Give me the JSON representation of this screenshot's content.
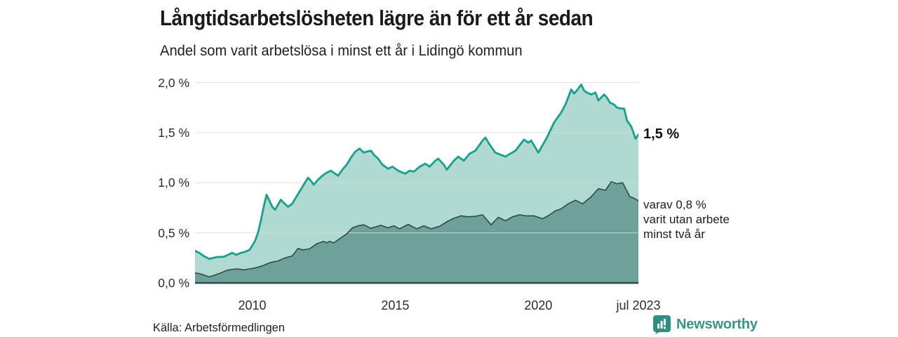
{
  "header": {
    "title": "Långtidsarbetslösheten lägre än för ett år sedan",
    "subtitle": "Andel som varit arbetslösa i minst ett år i Lidingö kommun"
  },
  "chart_data": {
    "type": "area",
    "title": "Långtidsarbetslösheten lägre än för ett år sedan",
    "subtitle": "Andel som varit arbetslösa i minst ett år i Lidingö kommun",
    "xlabel": "",
    "ylabel": "",
    "xlim": [
      2008.0,
      2023.5
    ],
    "ylim": [
      0,
      2.05
    ],
    "grid": true,
    "unit": "%",
    "colors": {
      "line_1yr": "#17a08c",
      "fill_1yr": "#b0d9d1",
      "line_2yr": "#2c4b47",
      "fill_2yr": "#6fa19b",
      "gridline": "#dcdcdc"
    },
    "yticks": [
      {
        "value": 0.0,
        "label": "0,0 %"
      },
      {
        "value": 0.5,
        "label": "0,5 %"
      },
      {
        "value": 1.0,
        "label": "1,0 %"
      },
      {
        "value": 1.5,
        "label": "1,5 %"
      },
      {
        "value": 2.0,
        "label": "2,0 %"
      }
    ],
    "xticks": [
      {
        "year": 2010,
        "label": "2010"
      },
      {
        "year": 2015,
        "label": "2015"
      },
      {
        "year": 2020,
        "label": "2020"
      },
      {
        "year": 2023.5,
        "label": "jul 2023"
      }
    ],
    "series": [
      {
        "name": "Andel arbetslösa minst ett år",
        "end_label": "1,5 %",
        "points": [
          [
            2008.0,
            0.32
          ],
          [
            2008.15,
            0.3
          ],
          [
            2008.3,
            0.27
          ],
          [
            2008.5,
            0.24
          ],
          [
            2008.65,
            0.25
          ],
          [
            2008.8,
            0.26
          ],
          [
            2009.0,
            0.26
          ],
          [
            2009.15,
            0.28
          ],
          [
            2009.3,
            0.3
          ],
          [
            2009.45,
            0.28
          ],
          [
            2009.6,
            0.3
          ],
          [
            2009.75,
            0.31
          ],
          [
            2009.9,
            0.33
          ],
          [
            2010.0,
            0.37
          ],
          [
            2010.1,
            0.42
          ],
          [
            2010.2,
            0.5
          ],
          [
            2010.3,
            0.62
          ],
          [
            2010.4,
            0.76
          ],
          [
            2010.5,
            0.88
          ],
          [
            2010.6,
            0.82
          ],
          [
            2010.7,
            0.76
          ],
          [
            2010.8,
            0.73
          ],
          [
            2010.9,
            0.78
          ],
          [
            2011.0,
            0.83
          ],
          [
            2011.1,
            0.8
          ],
          [
            2011.25,
            0.76
          ],
          [
            2011.4,
            0.79
          ],
          [
            2011.5,
            0.84
          ],
          [
            2011.65,
            0.91
          ],
          [
            2011.8,
            0.98
          ],
          [
            2011.95,
            1.05
          ],
          [
            2012.05,
            1.02
          ],
          [
            2012.15,
            0.98
          ],
          [
            2012.3,
            1.03
          ],
          [
            2012.45,
            1.07
          ],
          [
            2012.6,
            1.1
          ],
          [
            2012.75,
            1.12
          ],
          [
            2012.9,
            1.09
          ],
          [
            2013.0,
            1.07
          ],
          [
            2013.15,
            1.13
          ],
          [
            2013.3,
            1.18
          ],
          [
            2013.45,
            1.25
          ],
          [
            2013.6,
            1.31
          ],
          [
            2013.75,
            1.34
          ],
          [
            2013.9,
            1.3
          ],
          [
            2014.0,
            1.31
          ],
          [
            2014.15,
            1.32
          ],
          [
            2014.25,
            1.28
          ],
          [
            2014.4,
            1.24
          ],
          [
            2014.55,
            1.18
          ],
          [
            2014.75,
            1.14
          ],
          [
            2014.9,
            1.16
          ],
          [
            2015.1,
            1.12
          ],
          [
            2015.35,
            1.09
          ],
          [
            2015.5,
            1.12
          ],
          [
            2015.65,
            1.11
          ],
          [
            2015.85,
            1.16
          ],
          [
            2016.05,
            1.19
          ],
          [
            2016.2,
            1.16
          ],
          [
            2016.4,
            1.22
          ],
          [
            2016.5,
            1.24
          ],
          [
            2016.7,
            1.18
          ],
          [
            2016.8,
            1.13
          ],
          [
            2017.05,
            1.22
          ],
          [
            2017.2,
            1.26
          ],
          [
            2017.4,
            1.22
          ],
          [
            2017.6,
            1.29
          ],
          [
            2017.8,
            1.32
          ],
          [
            2018.05,
            1.42
          ],
          [
            2018.15,
            1.45
          ],
          [
            2018.3,
            1.38
          ],
          [
            2018.5,
            1.3
          ],
          [
            2018.85,
            1.26
          ],
          [
            2019.2,
            1.32
          ],
          [
            2019.5,
            1.43
          ],
          [
            2019.65,
            1.4
          ],
          [
            2019.75,
            1.42
          ],
          [
            2019.9,
            1.35
          ],
          [
            2020.0,
            1.3
          ],
          [
            2020.3,
            1.45
          ],
          [
            2020.55,
            1.6
          ],
          [
            2020.8,
            1.7
          ],
          [
            2020.95,
            1.78
          ],
          [
            2021.15,
            1.93
          ],
          [
            2021.25,
            1.89
          ],
          [
            2021.35,
            1.92
          ],
          [
            2021.5,
            1.98
          ],
          [
            2021.6,
            1.92
          ],
          [
            2021.7,
            1.9
          ],
          [
            2021.85,
            1.88
          ],
          [
            2022.0,
            1.9
          ],
          [
            2022.1,
            1.82
          ],
          [
            2022.3,
            1.88
          ],
          [
            2022.4,
            1.85
          ],
          [
            2022.5,
            1.8
          ],
          [
            2022.65,
            1.78
          ],
          [
            2022.75,
            1.75
          ],
          [
            2022.9,
            1.74
          ],
          [
            2023.0,
            1.74
          ],
          [
            2023.1,
            1.62
          ],
          [
            2023.25,
            1.56
          ],
          [
            2023.4,
            1.44
          ],
          [
            2023.5,
            1.48
          ]
        ]
      },
      {
        "name": "varav utan arbete minst två år",
        "end_label": "varav 0,8 % varit utan arbete minst två år",
        "points": [
          [
            2008.0,
            0.1
          ],
          [
            2008.2,
            0.09
          ],
          [
            2008.35,
            0.075
          ],
          [
            2008.5,
            0.06
          ],
          [
            2008.7,
            0.08
          ],
          [
            2008.9,
            0.1
          ],
          [
            2009.1,
            0.125
          ],
          [
            2009.3,
            0.135
          ],
          [
            2009.5,
            0.14
          ],
          [
            2009.7,
            0.13
          ],
          [
            2009.9,
            0.14
          ],
          [
            2010.1,
            0.15
          ],
          [
            2010.35,
            0.17
          ],
          [
            2010.65,
            0.205
          ],
          [
            2010.9,
            0.22
          ],
          [
            2011.15,
            0.25
          ],
          [
            2011.4,
            0.27
          ],
          [
            2011.6,
            0.345
          ],
          [
            2011.75,
            0.33
          ],
          [
            2012.0,
            0.34
          ],
          [
            2012.25,
            0.39
          ],
          [
            2012.5,
            0.415
          ],
          [
            2012.6,
            0.4
          ],
          [
            2012.7,
            0.415
          ],
          [
            2012.85,
            0.4
          ],
          [
            2013.1,
            0.45
          ],
          [
            2013.3,
            0.49
          ],
          [
            2013.5,
            0.55
          ],
          [
            2013.7,
            0.57
          ],
          [
            2013.9,
            0.58
          ],
          [
            2014.15,
            0.545
          ],
          [
            2014.5,
            0.575
          ],
          [
            2014.75,
            0.55
          ],
          [
            2014.95,
            0.57
          ],
          [
            2015.15,
            0.54
          ],
          [
            2015.45,
            0.585
          ],
          [
            2015.75,
            0.54
          ],
          [
            2016.0,
            0.57
          ],
          [
            2016.25,
            0.54
          ],
          [
            2016.55,
            0.565
          ],
          [
            2016.8,
            0.61
          ],
          [
            2017.05,
            0.645
          ],
          [
            2017.3,
            0.67
          ],
          [
            2017.55,
            0.66
          ],
          [
            2017.8,
            0.665
          ],
          [
            2018.05,
            0.68
          ],
          [
            2018.35,
            0.58
          ],
          [
            2018.6,
            0.655
          ],
          [
            2018.85,
            0.62
          ],
          [
            2019.1,
            0.66
          ],
          [
            2019.35,
            0.68
          ],
          [
            2019.55,
            0.67
          ],
          [
            2019.85,
            0.67
          ],
          [
            2020.15,
            0.64
          ],
          [
            2020.4,
            0.68
          ],
          [
            2020.6,
            0.72
          ],
          [
            2020.8,
            0.74
          ],
          [
            2021.05,
            0.79
          ],
          [
            2021.3,
            0.825
          ],
          [
            2021.55,
            0.79
          ],
          [
            2021.85,
            0.86
          ],
          [
            2022.1,
            0.94
          ],
          [
            2022.35,
            0.925
          ],
          [
            2022.55,
            1.01
          ],
          [
            2022.75,
            0.99
          ],
          [
            2022.95,
            1.0
          ],
          [
            2023.2,
            0.86
          ],
          [
            2023.35,
            0.845
          ],
          [
            2023.5,
            0.82
          ]
        ]
      }
    ]
  },
  "annotations": {
    "end_value": "1,5 %",
    "varav_line1": "varav 0,8 %",
    "varav_line2": "varit utan arbete",
    "varav_line3": "minst två år"
  },
  "source": {
    "text": "Källa: Arbetsförmedlingen"
  },
  "logo": {
    "text": "Newsworthy"
  }
}
